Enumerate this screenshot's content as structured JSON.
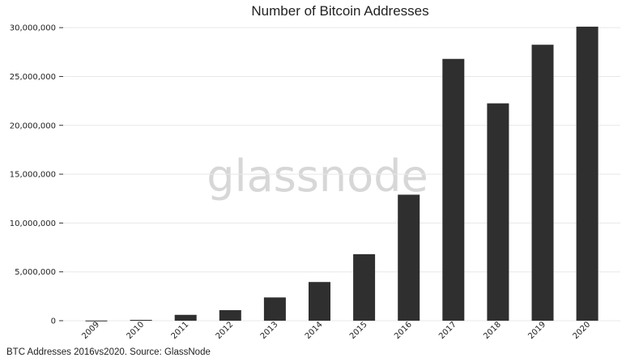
{
  "caption": "BTC Addresses 2016vs2020. Source: GlassNode",
  "watermark": "glassnode",
  "colors": {
    "bar": "#2f2f2f",
    "grid": "#e8e8e8",
    "watermark": "#d7d7d7",
    "axis": "#333333"
  },
  "chart_data": {
    "type": "bar",
    "title": "Number of Bitcoin Addresses",
    "xlabel": "",
    "ylabel": "",
    "categories": [
      "2009",
      "2010",
      "2011",
      "2012",
      "2013",
      "2014",
      "2015",
      "2016",
      "2017",
      "2018",
      "2019",
      "2020"
    ],
    "values": [
      15000,
      85000,
      600000,
      1080000,
      2380000,
      3960000,
      6810000,
      12900000,
      26800000,
      22250000,
      28250000,
      30100000
    ],
    "yticks": [
      "0",
      "5,000,000",
      "10,000,000",
      "15,000,000",
      "20,000,000",
      "25,000,000",
      "30,000,000"
    ],
    "ylim": [
      0,
      32000000
    ],
    "grid": true,
    "legend": "none"
  }
}
